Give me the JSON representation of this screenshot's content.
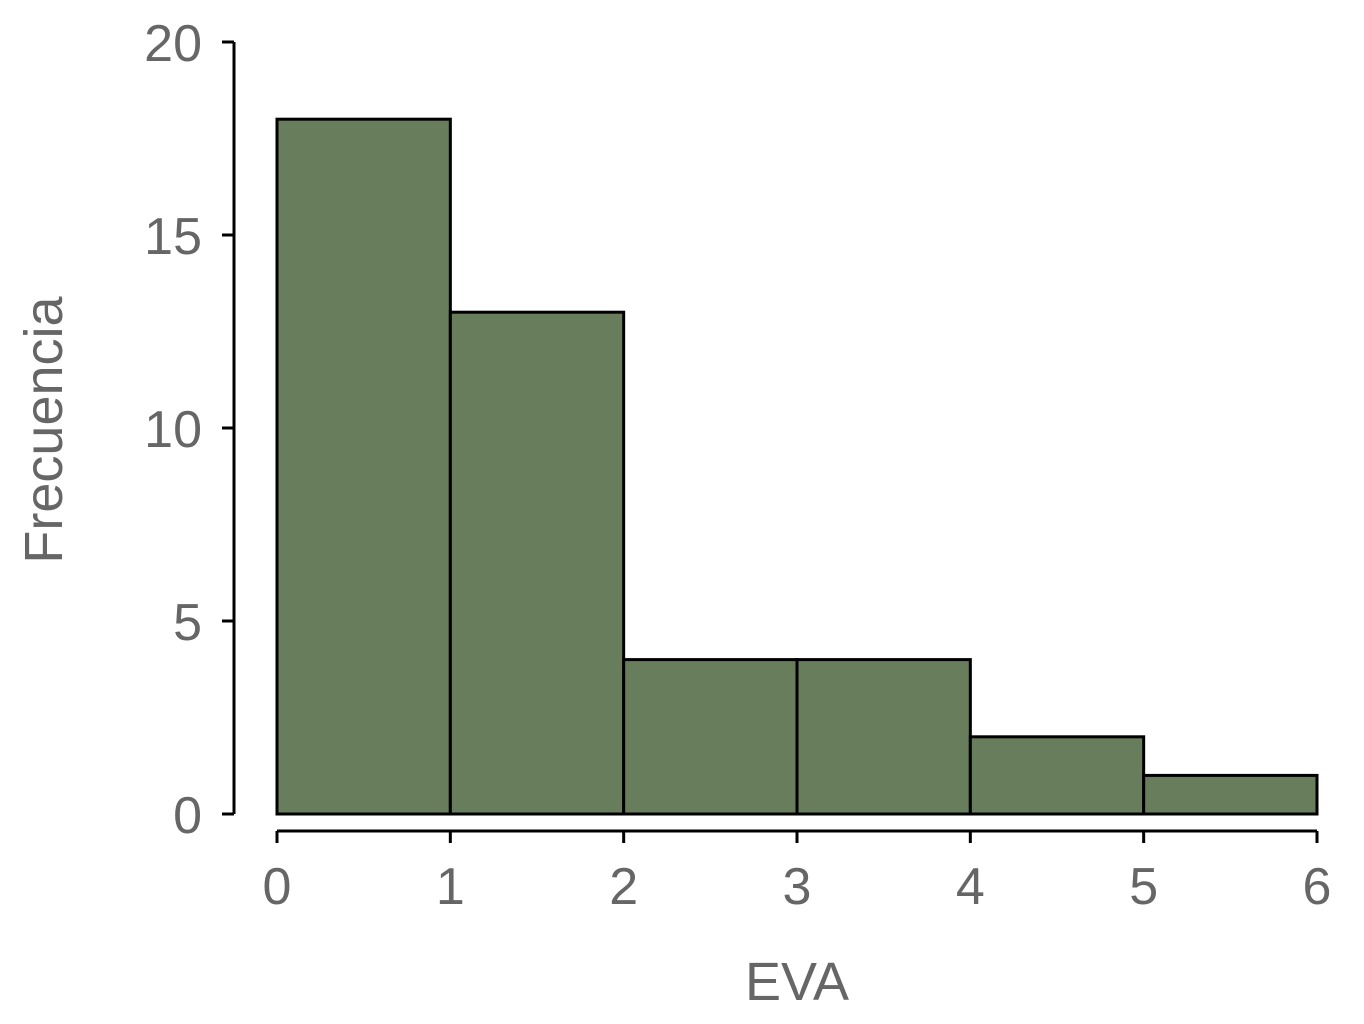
{
  "chart_data": {
    "type": "bar",
    "bins": [
      {
        "x0": 0,
        "x1": 1,
        "value": 18
      },
      {
        "x0": 1,
        "x1": 2,
        "value": 13
      },
      {
        "x0": 2,
        "x1": 3,
        "value": 4
      },
      {
        "x0": 3,
        "x1": 4,
        "value": 4
      },
      {
        "x0": 4,
        "x1": 5,
        "value": 2
      },
      {
        "x0": 5,
        "x1": 6,
        "value": 1
      }
    ],
    "xlabel": "EVA",
    "ylabel": "Frecuencia",
    "xlim": [
      0,
      6
    ],
    "ylim": [
      0,
      20
    ],
    "xticks": [
      "0",
      "1",
      "2",
      "3",
      "4",
      "5",
      "6"
    ],
    "yticks": [
      "0",
      "5",
      "10",
      "15",
      "20"
    ],
    "grid": false,
    "bar_color": "#687d5c"
  }
}
